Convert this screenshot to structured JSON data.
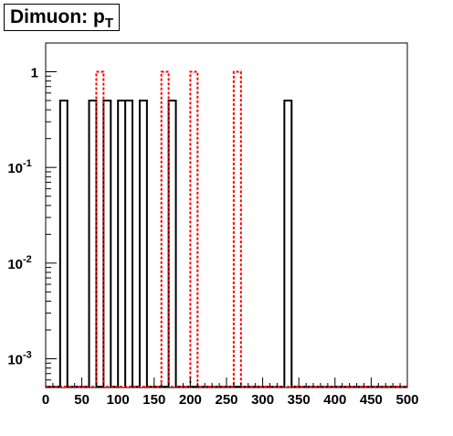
{
  "chart_data": {
    "type": "histogram",
    "title": "Dimuon: p",
    "title_subscript": "T",
    "xlabel": "",
    "ylabel": "",
    "xlim": [
      0,
      500
    ],
    "ylim": [
      0.0005,
      2
    ],
    "yscale": "log",
    "bin_width": 10,
    "grid": false,
    "x_ticks": [
      "0",
      "50",
      "100",
      "150",
      "200",
      "250",
      "300",
      "350",
      "400",
      "450",
      "500"
    ],
    "y_ticks": [
      {
        "value": 1,
        "label": "1",
        "exp": ""
      },
      {
        "value": 0.1,
        "label": "10",
        "exp": "-1"
      },
      {
        "value": 0.01,
        "label": "10",
        "exp": "-2"
      },
      {
        "value": 0.001,
        "label": "10",
        "exp": "-3"
      }
    ],
    "series": [
      {
        "style": "solid",
        "color": "#000000",
        "bins": [
          {
            "x0": 20,
            "x1": 30,
            "y": 0.5
          },
          {
            "x0": 60,
            "x1": 70,
            "y": 0.5
          },
          {
            "x0": 80,
            "x1": 90,
            "y": 0.5
          },
          {
            "x0": 100,
            "x1": 110,
            "y": 0.5
          },
          {
            "x0": 110,
            "x1": 120,
            "y": 0.5
          },
          {
            "x0": 130,
            "x1": 140,
            "y": 0.5
          },
          {
            "x0": 170,
            "x1": 180,
            "y": 0.5
          },
          {
            "x0": 330,
            "x1": 340,
            "y": 0.5
          }
        ]
      },
      {
        "style": "dotted",
        "color": "#ff0000",
        "bins": [
          {
            "x0": 70,
            "x1": 80,
            "y": 1
          },
          {
            "x0": 160,
            "x1": 170,
            "y": 1
          },
          {
            "x0": 200,
            "x1": 210,
            "y": 1
          },
          {
            "x0": 260,
            "x1": 270,
            "y": 1
          }
        ]
      }
    ]
  }
}
